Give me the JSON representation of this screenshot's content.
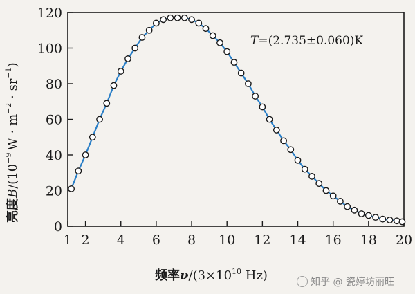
{
  "chart_data": {
    "type": "scatter",
    "fit": "line",
    "xlabel_prefix": "频率",
    "xlabel_var": "ν",
    "xlabel_suffix": "/(3×10",
    "xlabel_exp": "10",
    "xlabel_unit": " Hz)",
    "ylabel_prefix": "亮度",
    "ylabel_var": "B",
    "ylabel_suffix": "/(10",
    "ylabel_exp": "−9",
    "ylabel_unit": "W · m",
    "ylabel_exp2": "−2",
    "ylabel_tail": " · sr",
    "ylabel_exp3": "−1",
    "ylabel_close": ")",
    "annotation_var": "T",
    "annotation_text": "=(2.735±0.060)K",
    "xlim": [
      1,
      20
    ],
    "ylim": [
      0,
      120
    ],
    "xticks": [
      1,
      2,
      4,
      6,
      8,
      10,
      12,
      14,
      16,
      18,
      20
    ],
    "yticks": [
      0,
      20,
      40,
      60,
      80,
      100,
      120
    ],
    "grid": false,
    "series": [
      {
        "marker": "open-circle",
        "line_color": "#2a7fc7",
        "x": [
          1.2,
          1.6,
          2.0,
          2.4,
          2.8,
          3.2,
          3.6,
          4.0,
          4.4,
          4.8,
          5.2,
          5.6,
          6.0,
          6.4,
          6.8,
          7.2,
          7.6,
          8.0,
          8.4,
          8.8,
          9.2,
          9.6,
          10.0,
          10.4,
          10.8,
          11.2,
          11.6,
          12.0,
          12.4,
          12.8,
          13.2,
          13.6,
          14.0,
          14.4,
          14.8,
          15.2,
          15.6,
          16.0,
          16.4,
          16.8,
          17.2,
          17.6,
          18.0,
          18.4,
          18.8,
          19.2,
          19.6,
          19.9
        ],
        "y": [
          21,
          31,
          40,
          50,
          60,
          69,
          79,
          87,
          94,
          100,
          106,
          110,
          114,
          116,
          117,
          117,
          117,
          116,
          114,
          111,
          107,
          103,
          98,
          92,
          86,
          80,
          73,
          67,
          60,
          54,
          48,
          43,
          37,
          32,
          28,
          24,
          20,
          17,
          14,
          11,
          9,
          7,
          6,
          5,
          4,
          3.5,
          3,
          2.5
        ]
      }
    ]
  },
  "watermark": "知乎 @ 瓷婷坊丽旺"
}
